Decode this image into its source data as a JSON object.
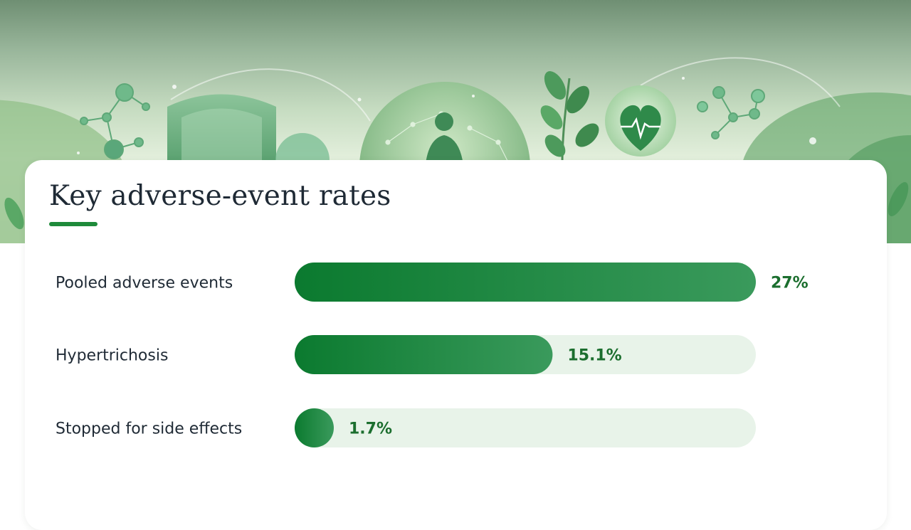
{
  "chart_data": {
    "type": "bar",
    "orientation": "horizontal",
    "title": "Key adverse-event rates",
    "categories": [
      "Pooled adverse events",
      "Hypertrichosis",
      "Stopped for side effects"
    ],
    "values": [
      27,
      15.1,
      1.7
    ],
    "value_labels": [
      "27%",
      "15.1%",
      "1.7%"
    ],
    "unit": "%",
    "xlim": [
      0,
      27
    ],
    "colors": {
      "bar_start": "#0b7a2f",
      "bar_end": "#3a9a5c",
      "track": "#e8f3e9",
      "value_text": "#1b6e2e",
      "label_text": "#1f2a35",
      "accent": "#1e8a3a"
    }
  }
}
